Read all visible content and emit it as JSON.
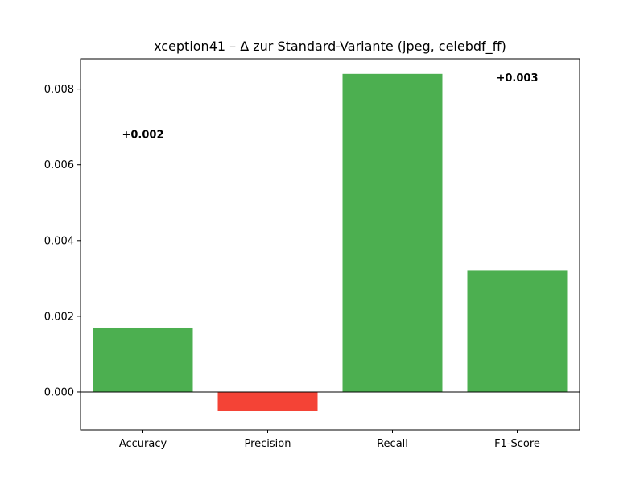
{
  "chart_data": {
    "type": "bar",
    "title": "xception41 – Δ zur Standard-Variante (jpeg, celebdf_ff)",
    "xlabel": "",
    "ylabel": "",
    "categories": [
      "Accuracy",
      "Precision",
      "Recall",
      "F1-Score"
    ],
    "values": [
      0.0017,
      -0.0005,
      0.0084,
      0.0032
    ],
    "ylim": [
      -0.001,
      0.0088
    ],
    "yticks": [
      0.0,
      0.002,
      0.004,
      0.006,
      0.008
    ],
    "ytick_labels": [
      "0.000",
      "0.002",
      "0.004",
      "0.006",
      "0.008"
    ],
    "grid": false,
    "zero_line": true,
    "colors": {
      "positive": "#4caf50",
      "negative": "#f44336"
    },
    "annotations": [
      {
        "category": "Accuracy",
        "text": "+0.002",
        "y": 0.0068
      },
      {
        "category": "F1-Score",
        "text": "+0.003",
        "y": 0.0083
      }
    ]
  }
}
